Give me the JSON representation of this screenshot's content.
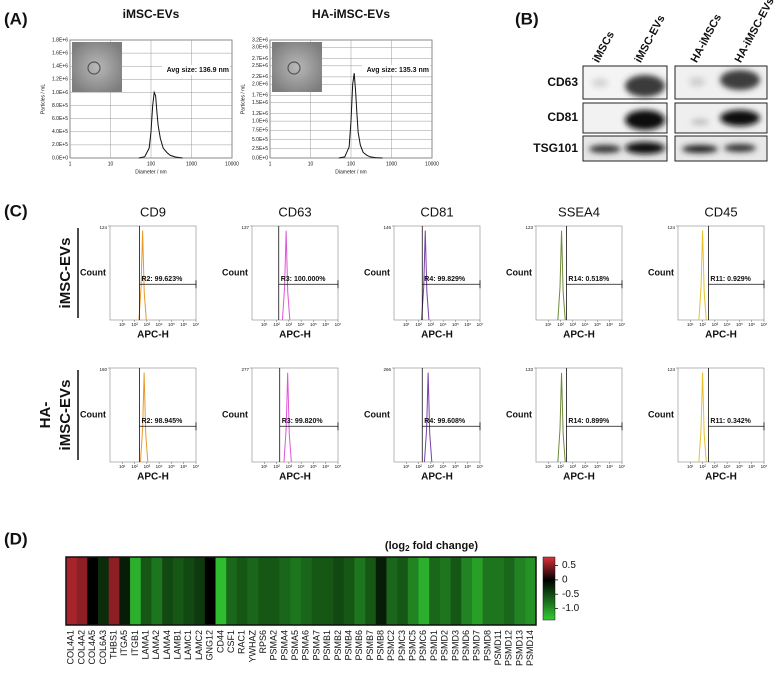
{
  "panel_a": {
    "label": "(A)",
    "charts": [
      {
        "type": "line",
        "title": "iMSC-EVs",
        "annotation": "Avg size: 136.9 nm",
        "x_label": "Diameter / nm",
        "y_label": "Particles / mL",
        "log_x": true,
        "xlim": [
          1,
          10000
        ],
        "xticks": [
          1,
          10,
          100,
          1000,
          10000
        ],
        "ylim": [
          0,
          1800000
        ],
        "yticks": [
          {
            "value": 0,
            "label": "0.0E+0"
          },
          {
            "value": 200000,
            "label": "2.0E+5"
          },
          {
            "value": 400000,
            "label": "4.0E+5"
          },
          {
            "value": 600000,
            "label": "6.0E+5"
          },
          {
            "value": 800000,
            "label": "8.0E+5"
          },
          {
            "value": 1000000,
            "label": "1.0E+6"
          },
          {
            "value": 1200000,
            "label": "1.2E+6"
          },
          {
            "value": 1400000,
            "label": "1.4E+6"
          },
          {
            "value": 1600000,
            "label": "1.6E+6"
          },
          {
            "value": 1800000,
            "label": "1.8E+6"
          }
        ],
        "grid": true,
        "color": "#111111",
        "x": [
          50,
          70,
          90,
          100,
          110,
          120,
          130,
          140,
          150,
          170,
          200,
          250,
          300,
          400,
          600
        ],
        "values": [
          0,
          20000,
          150000,
          400000,
          800000,
          1000000,
          950000,
          700000,
          500000,
          300000,
          150000,
          80000,
          40000,
          15000,
          0
        ]
      },
      {
        "type": "line",
        "title": "HA-iMSC-EVs",
        "annotation": "Avg size: 135.3 nm",
        "x_label": "Diameter / nm",
        "y_label": "Particles / mL",
        "log_x": true,
        "xlim": [
          1,
          10000
        ],
        "xticks": [
          1,
          10,
          100,
          1000,
          10000
        ],
        "ylim": [
          0,
          3200000
        ],
        "yticks": [
          {
            "value": 0,
            "label": "0.0E+0"
          },
          {
            "value": 250000,
            "label": "2.5E+5"
          },
          {
            "value": 500000,
            "label": "5.0E+5"
          },
          {
            "value": 750000,
            "label": "7.5E+5"
          },
          {
            "value": 1000000,
            "label": "1.0E+6"
          },
          {
            "value": 1200000,
            "label": "1.2E+6"
          },
          {
            "value": 1500000,
            "label": "1.5E+6"
          },
          {
            "value": 1700000,
            "label": "1.7E+6"
          },
          {
            "value": 2000000,
            "label": "2.0E+6"
          },
          {
            "value": 2200000,
            "label": "2.2E+6"
          },
          {
            "value": 2500000,
            "label": "2.5E+6"
          },
          {
            "value": 2700000,
            "label": "2.7E+6"
          },
          {
            "value": 3000000,
            "label": "3.0E+6"
          },
          {
            "value": 3200000,
            "label": "3.2E+6"
          }
        ],
        "grid": true,
        "color": "#111111",
        "x": [
          50,
          70,
          90,
          100,
          110,
          120,
          130,
          140,
          150,
          170,
          200,
          250,
          300,
          400,
          600
        ],
        "values": [
          0,
          30000,
          300000,
          1000000,
          2000000,
          2300000,
          1800000,
          1200000,
          700000,
          350000,
          150000,
          70000,
          30000,
          10000,
          0
        ]
      }
    ]
  },
  "panel_b": {
    "label": "(B)",
    "columns": [
      "iMSCs",
      "iMSC-EVs",
      "HA-iMSCs",
      "HA-iMSC-EVs"
    ],
    "rows": [
      "CD63",
      "CD81",
      "TSG101"
    ]
  },
  "panel_c": {
    "label": "(C)",
    "row_labels": [
      [
        "iMSC-EVs"
      ],
      [
        "HA-",
        "iMSC-EVs"
      ]
    ],
    "x_label": "APC-H",
    "y_label": "Count",
    "log_x": true,
    "xlim": [
      1,
      10000000
    ],
    "xticks": [
      {
        "value": 10,
        "label": "10¹"
      },
      {
        "value": 100,
        "label": "10²"
      },
      {
        "value": 1000,
        "label": "10³"
      },
      {
        "value": 10000,
        "label": "10⁴"
      },
      {
        "value": 100000,
        "label": "10⁵"
      },
      {
        "value": 1000000,
        "label": "10⁶"
      },
      {
        "value": 10000000,
        "label": "10⁷"
      }
    ],
    "markers": [
      {
        "name": "CD9",
        "color": "#e89a2c"
      },
      {
        "name": "CD63",
        "color": "#e055d8"
      },
      {
        "name": "CD81",
        "color": "#7a3fa8"
      },
      {
        "name": "SSEA4",
        "color": "#6f8a3a"
      },
      {
        "name": "CD45",
        "color": "#e8c22a"
      }
    ],
    "plots": [
      [
        {
          "ylim": [
            0,
            124
          ],
          "yticks": [
            124
          ],
          "gate": 250,
          "gate_label": "R2: 99.623%",
          "x": [
            225,
            338,
            450,
            608,
            900
          ],
          "values": [
            0,
            43,
            118,
            37,
            0
          ]
        },
        {
          "ylim": [
            0,
            137
          ],
          "yticks": [
            137
          ],
          "gate": 150,
          "gate_label": "R3: 100.000%",
          "x": [
            300,
            450,
            600,
            810,
            1200
          ],
          "values": [
            0,
            48,
            130,
            41,
            0
          ]
        },
        {
          "ylim": [
            0,
            146
          ],
          "yticks": [
            146
          ],
          "gate": 200,
          "gate_label": "R4: 99.829%",
          "x": [
            175,
            263,
            350,
            473,
            700
          ],
          "values": [
            0,
            51,
            139,
            44,
            0
          ]
        },
        {
          "ylim": [
            0,
            123
          ],
          "yticks": [
            123
          ],
          "gate": 300,
          "gate_label": "R14: 0.518%",
          "x": [
            60,
            90,
            120,
            162,
            240
          ],
          "values": [
            0,
            43,
            117,
            37,
            0
          ]
        },
        {
          "ylim": [
            0,
            124
          ],
          "yticks": [
            124
          ],
          "gate": 300,
          "gate_label": "R11: 0.929%",
          "x": [
            50,
            75,
            100,
            135,
            200
          ],
          "values": [
            0,
            43,
            118,
            37,
            0
          ]
        }
      ],
      [
        {
          "ylim": [
            0,
            160
          ],
          "yticks": [
            160
          ],
          "gate": 250,
          "gate_label": "R2: 98.945%",
          "x": [
            300,
            450,
            600,
            810,
            1200
          ],
          "values": [
            0,
            56,
            152,
            48,
            0
          ]
        },
        {
          "ylim": [
            0,
            277
          ],
          "yticks": [
            277
          ],
          "gate": 180,
          "gate_label": "R3: 99.820%",
          "x": [
            400,
            600,
            800,
            1080,
            1600
          ],
          "values": [
            0,
            97,
            263,
            83,
            0
          ]
        },
        {
          "ylim": [
            0,
            266
          ],
          "yticks": [
            266
          ],
          "gate": 200,
          "gate_label": "R4: 99.608%",
          "x": [
            300,
            450,
            600,
            810,
            1200
          ],
          "values": [
            0,
            93,
            253,
            80,
            0
          ]
        },
        {
          "ylim": [
            0,
            133
          ],
          "yticks": [
            133
          ],
          "gate": 300,
          "gate_label": "R14: 0.899%",
          "x": [
            60,
            90,
            120,
            162,
            240
          ],
          "values": [
            0,
            47,
            126,
            40,
            0
          ]
        },
        {
          "ylim": [
            0,
            124
          ],
          "yticks": [
            124
          ],
          "gate": 300,
          "gate_label": "R11: 0.342%",
          "x": [
            50,
            75,
            100,
            135,
            200
          ],
          "values": [
            0,
            43,
            118,
            37,
            0
          ]
        }
      ]
    ]
  },
  "panel_d": {
    "label": "(D)",
    "type": "heatmap",
    "colorbar_title": {
      "before": "(log",
      "subscript": "2",
      "after": " fold change)"
    },
    "clim": [
      -1.4,
      0.8
    ],
    "cticks": [
      0.5,
      0,
      -0.5,
      {
        "value": -1,
        "label": "-1.0"
      }
    ],
    "colors": {
      "high": "#e0303a",
      "mid": "#000000",
      "low": "#33cc33"
    },
    "categories": [
      "COL4A1",
      "COL4A2",
      "COL4A5",
      "COL6A3",
      "THBS1",
      "ITGA5",
      "ITGB1",
      "LAMA1",
      "LAMA2",
      "LAMA4",
      "LAMB1",
      "LAMC1",
      "LAMC2",
      "GNG12",
      "CD44",
      "CSF1",
      "RAC1",
      "YWHAZ",
      "RPS6",
      "PSMA2",
      "PSMA4",
      "PSMA5",
      "PSMA6",
      "PSMA7",
      "PSMB1",
      "PSMB2",
      "PSMB4",
      "PSMB6",
      "PSMB7",
      "PSMB8",
      "PSMC2",
      "PSMC3",
      "PSMC5",
      "PSMC6",
      "PSMD1",
      "PSMD2",
      "PSMD3",
      "PSMD6",
      "PSMD7",
      "PSMD8",
      "PSMD11",
      "PSMD12",
      "PSMD13",
      "PSMD14"
    ],
    "values": [
      0.6,
      0.5,
      0,
      -0.3,
      0.5,
      -0.2,
      -1.2,
      -0.6,
      -0.8,
      -0.5,
      -0.6,
      -0.5,
      -0.4,
      0,
      -1.3,
      -0.7,
      -0.6,
      -0.7,
      -0.6,
      -0.6,
      -0.7,
      -0.8,
      -0.7,
      -0.6,
      -0.6,
      -0.5,
      -0.6,
      -0.8,
      -0.6,
      -0.2,
      -0.7,
      -0.6,
      -0.9,
      -1.2,
      -0.7,
      -0.8,
      -0.6,
      -0.9,
      -1.1,
      -0.8,
      -0.8,
      -0.7,
      -0.9,
      -1.0
    ]
  }
}
